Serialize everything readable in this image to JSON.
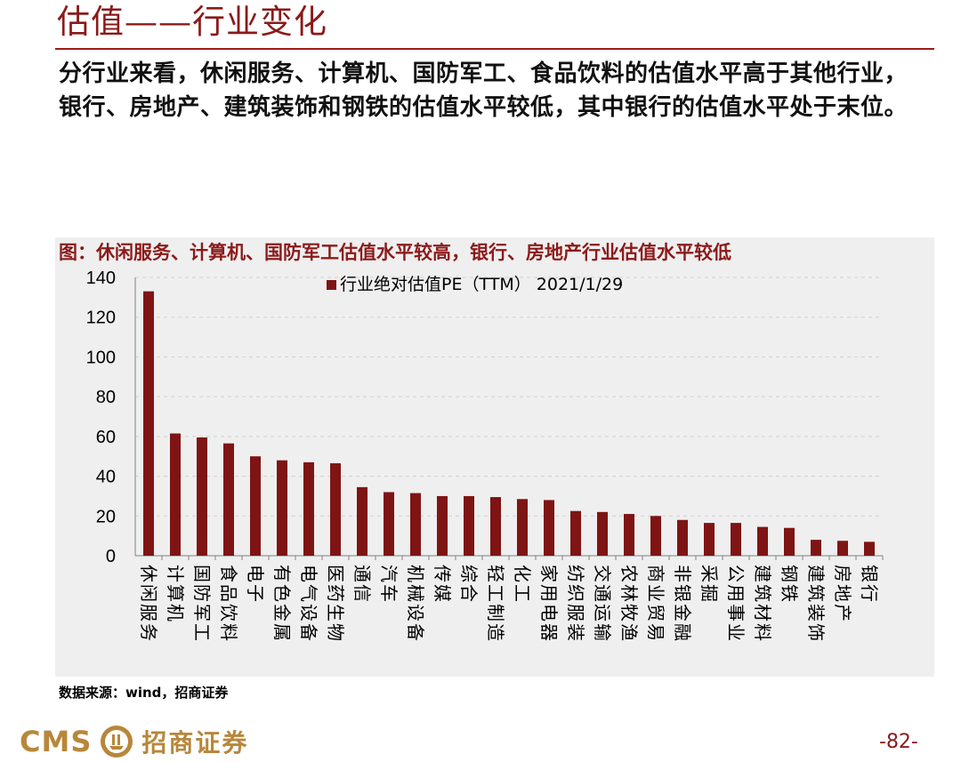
{
  "page": {
    "title": "估值——行业变化",
    "summary": "分行业来看，休闲服务、计算机、国防军工、食品饮料的估值水平高于其他行业，银行、房地产、建筑装饰和钢铁的估值水平较低，其中银行的估值水平处于末位。",
    "source": "数据来源：wind，招商证券",
    "page_number": "-82-"
  },
  "logo": {
    "latin": "CMS",
    "chinese": "招商证券",
    "icon": "cms-ship-logo-icon"
  },
  "colors": {
    "accent": "#8b1a1a",
    "bar": "#7f1414",
    "logo": "#b8873b",
    "panel": "#efefef"
  },
  "chart_data": {
    "type": "bar",
    "title": "图：休闲服务、计算机、国防军工估值水平较高，银行、房地产行业估值水平较低",
    "categories": [
      "休闲服务",
      "计算机",
      "国防军工",
      "食品饮料",
      "电子",
      "有色金属",
      "电气设备",
      "医药生物",
      "通信",
      "汽车",
      "机械设备",
      "传媒",
      "综合",
      "轻工制造",
      "化工",
      "家用电器",
      "纺织服装",
      "交通运输",
      "农林牧渔",
      "商业贸易",
      "非银金融",
      "采掘",
      "公用事业",
      "建筑材料",
      "钢铁",
      "建筑装饰",
      "房地产",
      "银行"
    ],
    "series": [
      {
        "name": "行业绝对估值PE（TTM） 2021/1/29",
        "values": [
          133,
          61.5,
          59.5,
          56.5,
          50,
          48,
          47,
          46.5,
          34.5,
          32,
          31.5,
          30,
          30,
          29.5,
          28.5,
          28,
          22.5,
          22,
          21,
          20,
          18,
          16.5,
          16.5,
          14.5,
          14,
          8,
          7.5,
          7
        ]
      }
    ],
    "yticks": [
      "0",
      "20",
      "40",
      "60",
      "80",
      "100",
      "120",
      "140"
    ],
    "ylim": [
      0,
      140
    ],
    "xlabel": "",
    "ylabel": "",
    "grid": true,
    "legend_position": "top-center"
  }
}
